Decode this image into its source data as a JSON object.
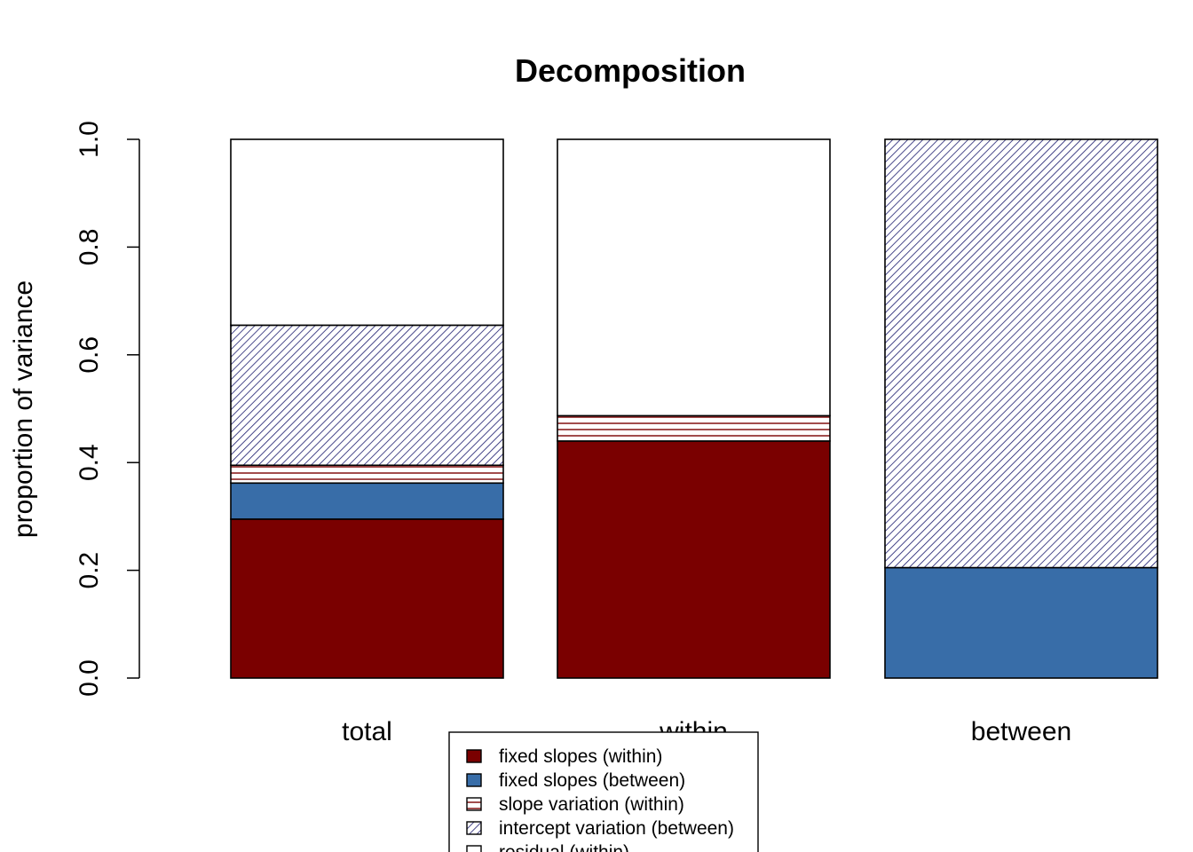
{
  "chart_data": {
    "type": "bar",
    "stacked": true,
    "title": "Decomposition",
    "xlabel": "",
    "ylabel": "proportion of variance",
    "ylim": [
      0,
      1
    ],
    "yticks": [
      "0.0",
      "0.2",
      "0.4",
      "0.6",
      "0.8",
      "1.0"
    ],
    "categories": [
      "total",
      "within",
      "between"
    ],
    "series": [
      {
        "name": "fixed slopes (within)",
        "color": "#7a0000",
        "pattern": "solid",
        "values": [
          0.295,
          0.44,
          0.0
        ]
      },
      {
        "name": "fixed slopes (between)",
        "color": "#386da8",
        "pattern": "solid",
        "values": [
          0.067,
          0.0,
          0.205
        ]
      },
      {
        "name": "slope variation (within)",
        "color": "#7a0000",
        "pattern": "horizontal-lines",
        "values": [
          0.033,
          0.047,
          0.0
        ]
      },
      {
        "name": "intercept variation (between)",
        "color": "#1a1a6e",
        "pattern": "diagonal-lines",
        "values": [
          0.26,
          0.0,
          0.795
        ]
      },
      {
        "name": "residual (within)",
        "color": "#ffffff",
        "pattern": "solid",
        "values": [
          0.345,
          0.513,
          0.0
        ]
      }
    ],
    "grid": false,
    "legend_position": "bottom-center"
  }
}
